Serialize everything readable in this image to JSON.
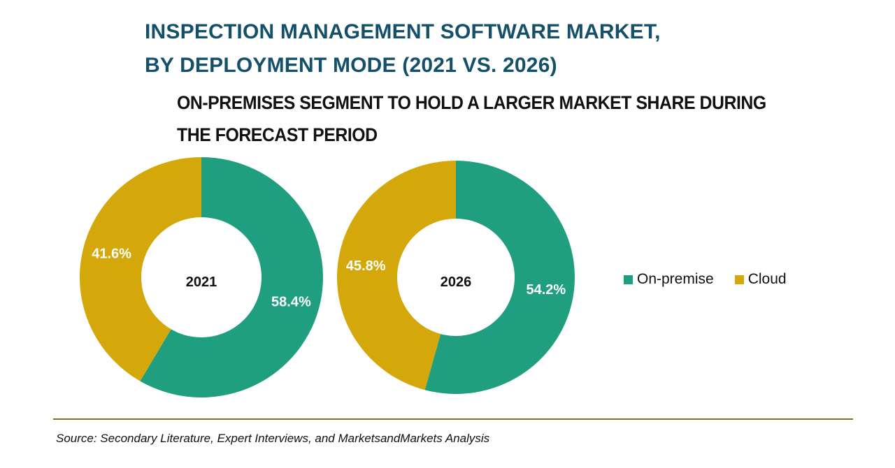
{
  "header": {
    "title_lines": [
      "INSPECTION MANAGEMENT SOFTWARE MARKET,",
      "BY DEPLOYMENT MODE (2021 VS. 2026)"
    ],
    "subtitle_lines": [
      "ON-PREMISES SEGMENT TO HOLD A LARGER MARKET SHARE DURING",
      "THE FORECAST PERIOD"
    ]
  },
  "colors": {
    "on_premise": "#1f9e80",
    "cloud": "#d4a80a",
    "title": "#14506a"
  },
  "chart_data": [
    {
      "type": "pie",
      "donut": true,
      "center_label": "2021",
      "categories": [
        "On-premise",
        "Cloud"
      ],
      "values": [
        58.4,
        41.6
      ],
      "labels": [
        "58.4%",
        "41.6%"
      ]
    },
    {
      "type": "pie",
      "donut": true,
      "center_label": "2026",
      "categories": [
        "On-premise",
        "Cloud"
      ],
      "values": [
        54.2,
        45.8
      ],
      "labels": [
        "54.2%",
        "45.8%"
      ]
    }
  ],
  "legend": {
    "items": [
      {
        "label": "On-premise",
        "color_key": "on_premise"
      },
      {
        "label": "Cloud",
        "color_key": "cloud"
      }
    ]
  },
  "footer": {
    "source": "Source: Secondary Literature, Expert Interviews, and MarketsandMarkets Analysis"
  }
}
